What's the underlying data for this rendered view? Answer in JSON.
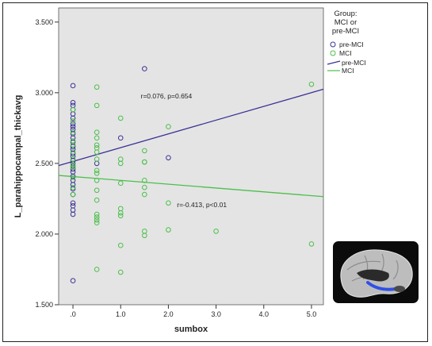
{
  "chart_data": {
    "type": "scatter",
    "xlabel": "sumbox",
    "ylabel": "L_parahippocampal_thickavg",
    "xlim": [
      -0.3,
      5.25
    ],
    "ylim": [
      1.5,
      3.6
    ],
    "x_ticks": [
      ".0",
      "1.0",
      "2.0",
      "3.0",
      "4.0",
      "5.0"
    ],
    "x_tick_values": [
      0,
      1,
      2,
      3,
      4,
      5
    ],
    "y_ticks": [
      "1.500",
      "2.000",
      "2.500",
      "3.000",
      "3.500"
    ],
    "y_tick_values": [
      1.5,
      2.0,
      2.5,
      3.0,
      3.5
    ],
    "grid": false,
    "background": "#e4e4e4",
    "legend": {
      "title_lines": [
        "Group:",
        "MCI or",
        "pre-MCI"
      ],
      "placement": "right",
      "marker_entries": [
        "pre-MCI",
        "MCI"
      ],
      "line_entries": [
        "pre-MCI",
        "MCI"
      ]
    },
    "series": [
      {
        "name": "pre-MCI",
        "color": "#3b3396",
        "points": [
          [
            0,
            3.05
          ],
          [
            0,
            2.93
          ],
          [
            0,
            2.91
          ],
          [
            0,
            2.88
          ],
          [
            0,
            2.85
          ],
          [
            0,
            2.82
          ],
          [
            0,
            2.78
          ],
          [
            0,
            2.76
          ],
          [
            0,
            2.74
          ],
          [
            0,
            2.71
          ],
          [
            0,
            2.68
          ],
          [
            0,
            2.65
          ],
          [
            0,
            2.62
          ],
          [
            0,
            2.6
          ],
          [
            0,
            2.57
          ],
          [
            0,
            2.55
          ],
          [
            0,
            2.52
          ],
          [
            0,
            2.5
          ],
          [
            0,
            2.48
          ],
          [
            0,
            2.46
          ],
          [
            0,
            2.44
          ],
          [
            0,
            2.41
          ],
          [
            0,
            2.38
          ],
          [
            0,
            2.35
          ],
          [
            0,
            2.32
          ],
          [
            0,
            2.28
          ],
          [
            0,
            2.22
          ],
          [
            0,
            2.2
          ],
          [
            0,
            2.17
          ],
          [
            0,
            2.14
          ],
          [
            0,
            1.67
          ],
          [
            0.5,
            2.5
          ],
          [
            1.0,
            2.68
          ],
          [
            1.5,
            3.17
          ],
          [
            2.0,
            2.54
          ]
        ]
      },
      {
        "name": "MCI",
        "color": "#4cbf4c",
        "points": [
          [
            0,
            2.88
          ],
          [
            0,
            2.8
          ],
          [
            0,
            2.72
          ],
          [
            0,
            2.66
          ],
          [
            0,
            2.63
          ],
          [
            0,
            2.58
          ],
          [
            0,
            2.53
          ],
          [
            0,
            2.49
          ],
          [
            0,
            2.47
          ],
          [
            0,
            2.4
          ],
          [
            0,
            2.33
          ],
          [
            0,
            2.28
          ],
          [
            0.5,
            3.04
          ],
          [
            0.5,
            2.91
          ],
          [
            0.5,
            2.72
          ],
          [
            0.5,
            2.68
          ],
          [
            0.5,
            2.63
          ],
          [
            0.5,
            2.61
          ],
          [
            0.5,
            2.58
          ],
          [
            0.5,
            2.53
          ],
          [
            0.5,
            2.45
          ],
          [
            0.5,
            2.43
          ],
          [
            0.5,
            2.38
          ],
          [
            0.5,
            2.31
          ],
          [
            0.5,
            2.24
          ],
          [
            0.5,
            2.14
          ],
          [
            0.5,
            2.12
          ],
          [
            0.5,
            2.1
          ],
          [
            0.5,
            2.08
          ],
          [
            0.5,
            1.75
          ],
          [
            1.0,
            2.82
          ],
          [
            1.0,
            2.53
          ],
          [
            1.0,
            2.5
          ],
          [
            1.0,
            2.36
          ],
          [
            1.0,
            2.18
          ],
          [
            1.0,
            2.15
          ],
          [
            1.0,
            2.13
          ],
          [
            1.0,
            1.92
          ],
          [
            1.0,
            1.73
          ],
          [
            1.5,
            2.59
          ],
          [
            1.5,
            2.51
          ],
          [
            1.5,
            2.51
          ],
          [
            1.5,
            2.38
          ],
          [
            1.5,
            2.33
          ],
          [
            1.5,
            2.28
          ],
          [
            1.5,
            2.02
          ],
          [
            1.5,
            1.99
          ],
          [
            2.0,
            2.76
          ],
          [
            2.0,
            2.22
          ],
          [
            2.0,
            2.03
          ],
          [
            3.0,
            2.02
          ],
          [
            5.0,
            3.06
          ],
          [
            5.0,
            1.93
          ]
        ]
      }
    ],
    "fit_lines": [
      {
        "name": "pre-MCI",
        "color": "#3b3396",
        "x": [
          -0.3,
          5.25
        ],
        "y": [
          2.485,
          3.025
        ]
      },
      {
        "name": "MCI",
        "color": "#4cbf4c",
        "x": [
          -0.3,
          5.25
        ],
        "y": [
          2.415,
          2.265
        ]
      }
    ],
    "annotations": [
      {
        "text": "r=0.076, p=0.654",
        "x": 1.42,
        "y": 2.96
      },
      {
        "text": "r=-0.413, p<0.01",
        "x": 2.18,
        "y": 2.19
      }
    ]
  }
}
